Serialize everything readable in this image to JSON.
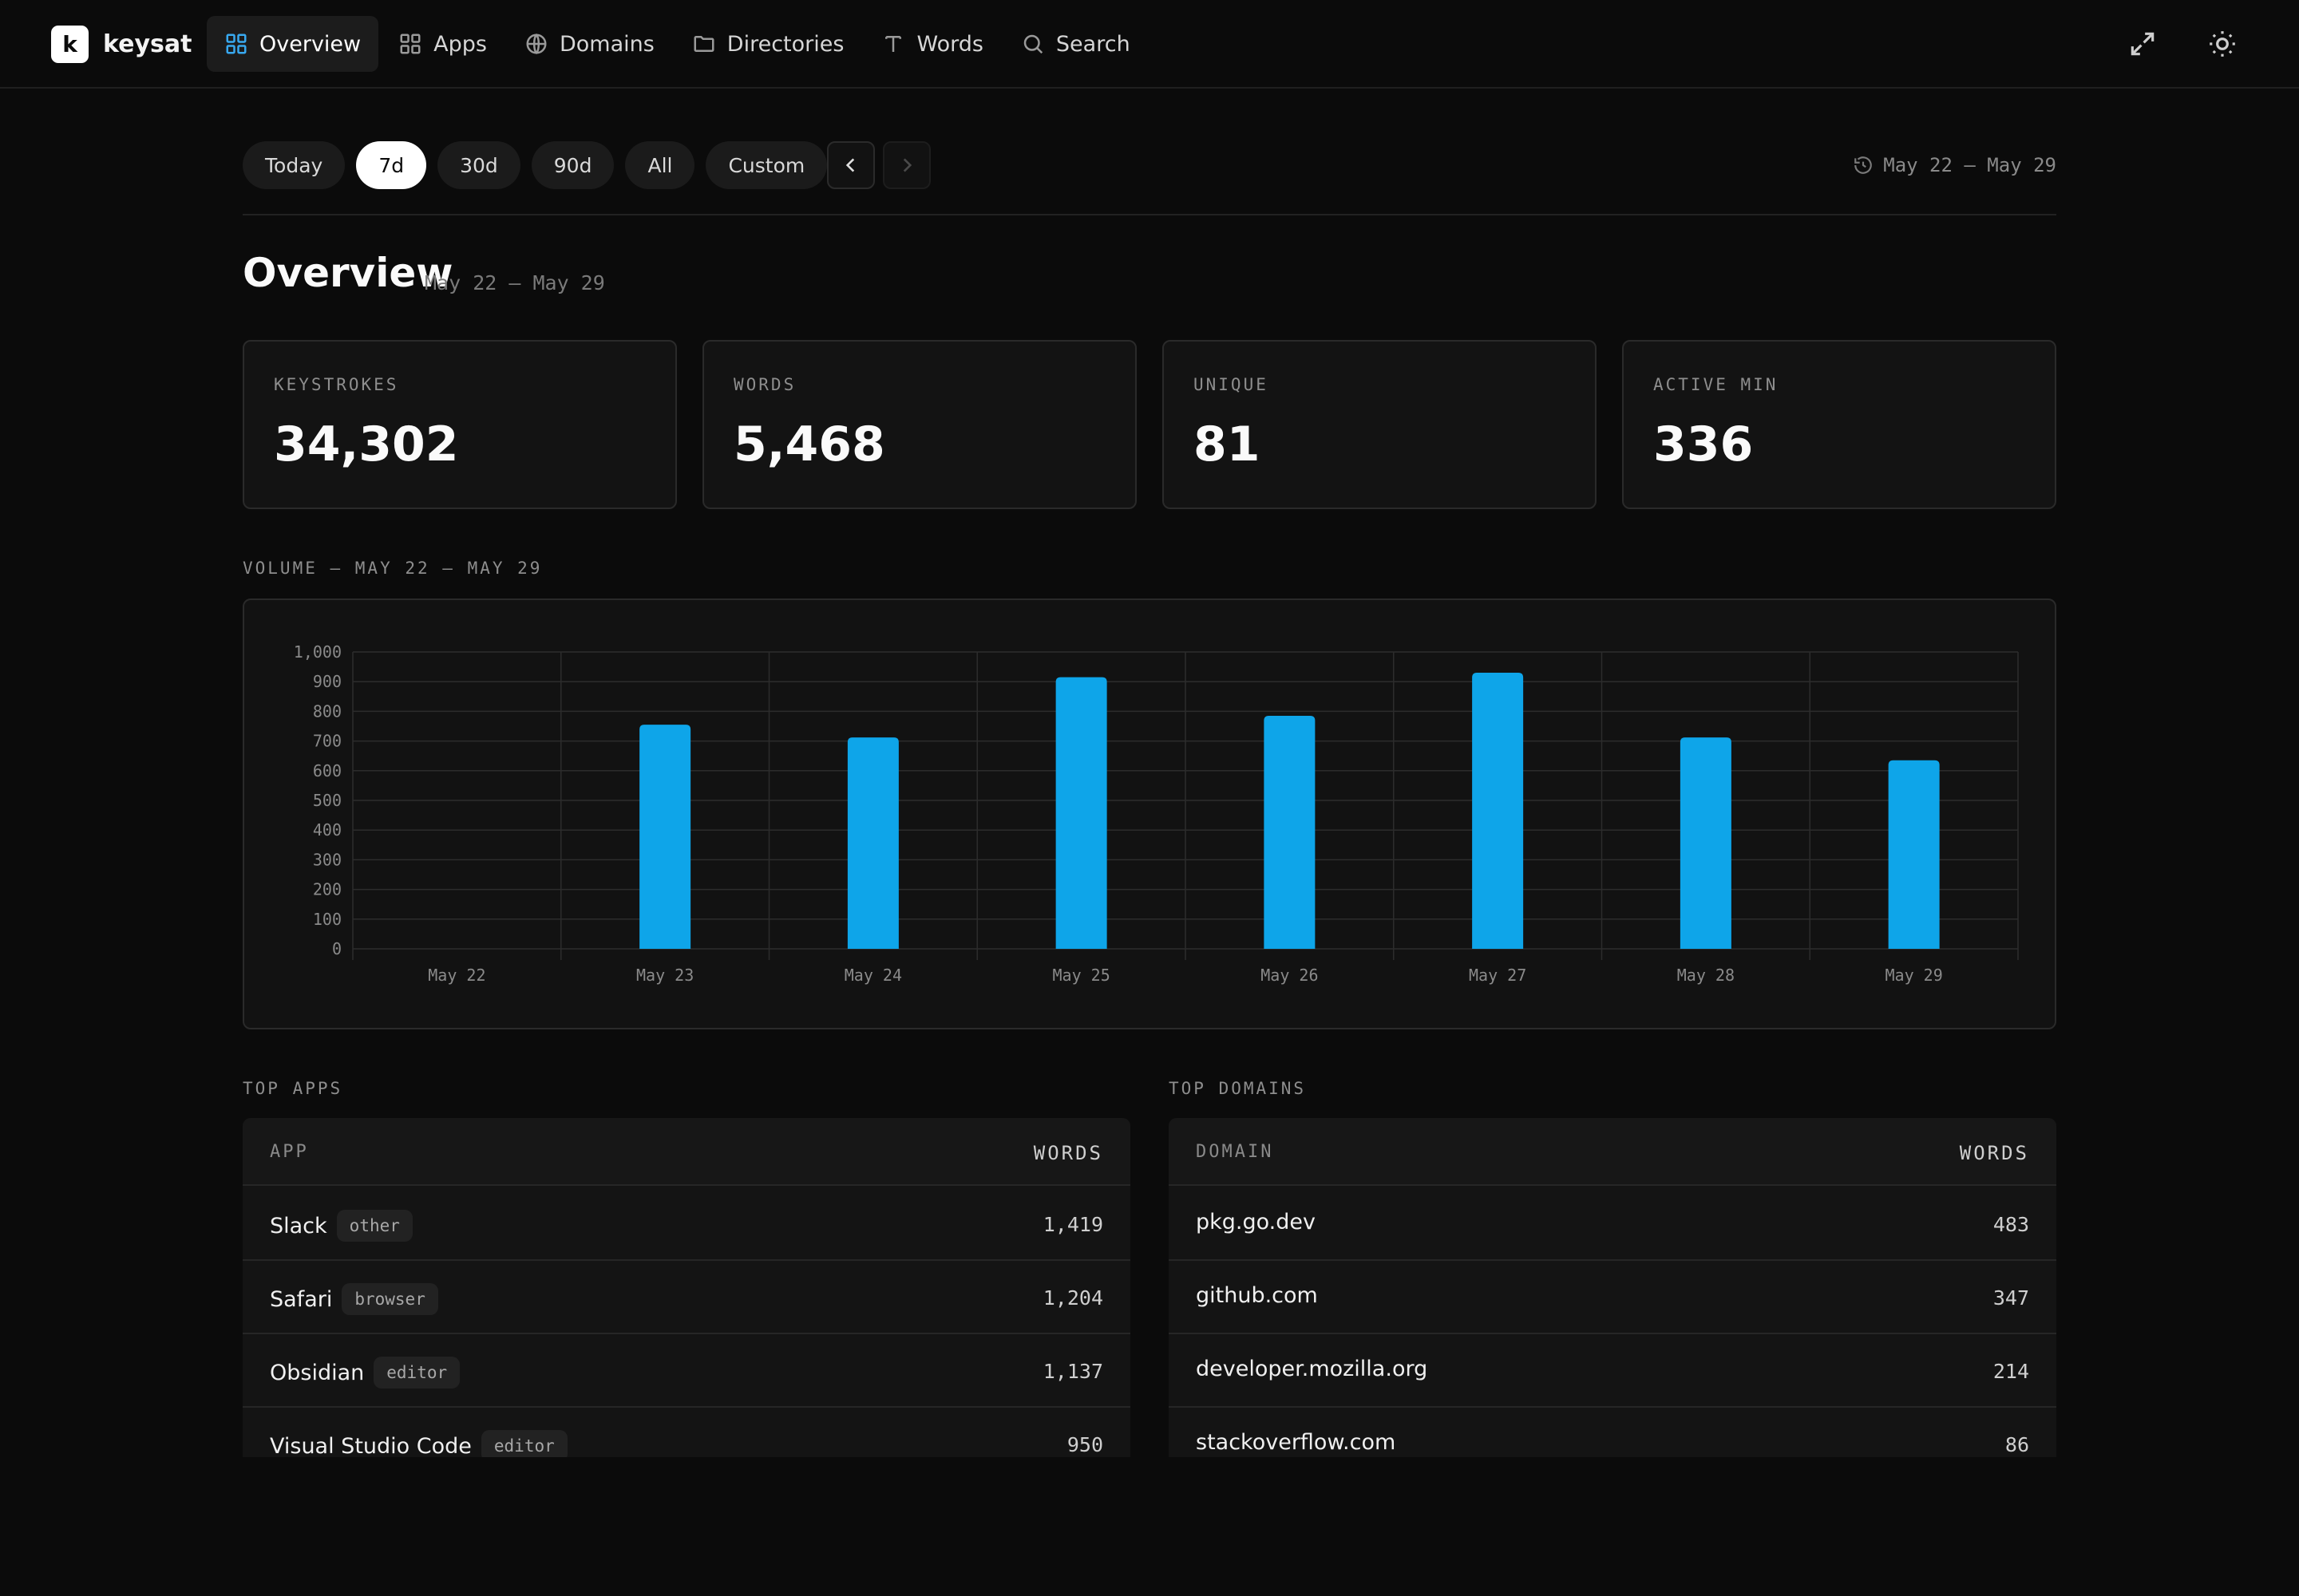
{
  "app": {
    "logo_letter": "k",
    "name": "keysat"
  },
  "nav": {
    "items": [
      {
        "label": "Overview",
        "icon": "grid-icon",
        "active": true
      },
      {
        "label": "Apps",
        "icon": "apps-icon",
        "active": false
      },
      {
        "label": "Domains",
        "icon": "globe-icon",
        "active": false
      },
      {
        "label": "Directories",
        "icon": "folder-icon",
        "active": false
      },
      {
        "label": "Words",
        "icon": "text-icon",
        "active": false
      },
      {
        "label": "Search",
        "icon": "search-icon",
        "active": false
      }
    ],
    "right_icons": [
      "expand-icon",
      "sun-icon"
    ]
  },
  "filters": {
    "chips": [
      "Today",
      "7d",
      "30d",
      "90d",
      "All",
      "Custom"
    ],
    "selected": "7d",
    "range_label": "May 22 – May 29"
  },
  "overview": {
    "title": "Overview",
    "subtitle": "May 22 – May 29"
  },
  "stats": [
    {
      "label": "KEYSTROKES",
      "value": "34,302"
    },
    {
      "label": "WORDS",
      "value": "5,468"
    },
    {
      "label": "UNIQUE",
      "value": "81"
    },
    {
      "label": "ACTIVE MIN",
      "value": "336"
    }
  ],
  "volume": {
    "label": "VOLUME — MAY 22 – MAY 29"
  },
  "chart_data": {
    "type": "bar",
    "categories": [
      "May 22",
      "May 23",
      "May 24",
      "May 25",
      "May 26",
      "May 27",
      "May 28",
      "May 29"
    ],
    "values": [
      0,
      755,
      712,
      915,
      785,
      930,
      712,
      635
    ],
    "ylim": [
      0,
      1000
    ],
    "yticks": [
      "0",
      "100",
      "200",
      "300",
      "400",
      "500",
      "600",
      "700",
      "800",
      "900",
      "1,000"
    ],
    "title": "",
    "xlabel": "",
    "ylabel": "",
    "grid": true,
    "bar_color": "#0ea5e9"
  },
  "top_apps": {
    "label": "TOP APPS",
    "col_name": "APP",
    "col_value": "WORDS",
    "rows": [
      {
        "name": "Slack",
        "tag": "other",
        "value": "1,419"
      },
      {
        "name": "Safari",
        "tag": "browser",
        "value": "1,204"
      },
      {
        "name": "Obsidian",
        "tag": "editor",
        "value": "1,137"
      },
      {
        "name": "Visual Studio Code",
        "tag": "editor",
        "value": "950"
      }
    ]
  },
  "top_domains": {
    "label": "TOP DOMAINS",
    "col_name": "DOMAIN",
    "col_value": "WORDS",
    "rows": [
      {
        "name": "pkg.go.dev",
        "value": "483"
      },
      {
        "name": "github.com",
        "value": "347"
      },
      {
        "name": "developer.mozilla.org",
        "value": "214"
      },
      {
        "name": "stackoverflow.com",
        "value": "86"
      }
    ]
  }
}
